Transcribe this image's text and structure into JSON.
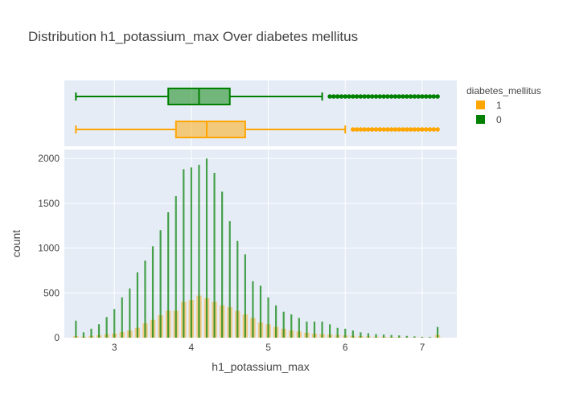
{
  "chart_data": {
    "type": "histogram",
    "title": "Distribution h1_potassium_max Over diabetes mellitus",
    "xlabel": "h1_potassium_max",
    "ylabel": "count",
    "xlim": [
      2.35,
      7.45
    ],
    "ylim": [
      0,
      2100
    ],
    "x_ticks": [
      3,
      4,
      5,
      6,
      7
    ],
    "y_ticks": [
      0,
      500,
      1000,
      1500,
      2000
    ],
    "legend": {
      "title": "diabetes_mellitus",
      "position": "top-right",
      "entries": [
        {
          "label": "1",
          "color": "#FFA500"
        },
        {
          "label": "0",
          "color": "#008000"
        }
      ]
    },
    "series": [
      {
        "name": "1",
        "color": "#FFA500",
        "bins": [
          {
            "x": 2.5,
            "y": 18
          },
          {
            "x": 2.6,
            "y": 12
          },
          {
            "x": 2.7,
            "y": 20
          },
          {
            "x": 2.8,
            "y": 28
          },
          {
            "x": 2.9,
            "y": 38
          },
          {
            "x": 3.0,
            "y": 45
          },
          {
            "x": 3.1,
            "y": 62
          },
          {
            "x": 3.2,
            "y": 80
          },
          {
            "x": 3.3,
            "y": 110
          },
          {
            "x": 3.4,
            "y": 160
          },
          {
            "x": 3.5,
            "y": 200
          },
          {
            "x": 3.6,
            "y": 250
          },
          {
            "x": 3.7,
            "y": 300
          },
          {
            "x": 3.8,
            "y": 300
          },
          {
            "x": 3.9,
            "y": 400
          },
          {
            "x": 4.0,
            "y": 420
          },
          {
            "x": 4.1,
            "y": 470
          },
          {
            "x": 4.2,
            "y": 440
          },
          {
            "x": 4.3,
            "y": 400
          },
          {
            "x": 4.4,
            "y": 360
          },
          {
            "x": 4.5,
            "y": 340
          },
          {
            "x": 4.6,
            "y": 300
          },
          {
            "x": 4.7,
            "y": 260
          },
          {
            "x": 4.8,
            "y": 220
          },
          {
            "x": 4.9,
            "y": 170
          },
          {
            "x": 5.0,
            "y": 150
          },
          {
            "x": 5.1,
            "y": 120
          },
          {
            "x": 5.2,
            "y": 100
          },
          {
            "x": 5.3,
            "y": 80
          },
          {
            "x": 5.4,
            "y": 70
          },
          {
            "x": 5.5,
            "y": 55
          },
          {
            "x": 5.6,
            "y": 45
          },
          {
            "x": 5.7,
            "y": 40
          },
          {
            "x": 5.8,
            "y": 35
          },
          {
            "x": 5.9,
            "y": 30
          },
          {
            "x": 6.0,
            "y": 25
          },
          {
            "x": 6.1,
            "y": 22
          },
          {
            "x": 6.2,
            "y": 18
          },
          {
            "x": 6.3,
            "y": 15
          },
          {
            "x": 6.4,
            "y": 12
          },
          {
            "x": 6.5,
            "y": 12
          },
          {
            "x": 6.6,
            "y": 10
          },
          {
            "x": 6.7,
            "y": 8
          },
          {
            "x": 6.8,
            "y": 6
          },
          {
            "x": 6.9,
            "y": 5
          },
          {
            "x": 7.0,
            "y": 4
          },
          {
            "x": 7.1,
            "y": 3
          },
          {
            "x": 7.2,
            "y": 30
          }
        ]
      },
      {
        "name": "0",
        "color": "#008000",
        "bins": [
          {
            "x": 2.5,
            "y": 190
          },
          {
            "x": 2.6,
            "y": 60
          },
          {
            "x": 2.7,
            "y": 100
          },
          {
            "x": 2.8,
            "y": 150
          },
          {
            "x": 2.9,
            "y": 230
          },
          {
            "x": 3.0,
            "y": 320
          },
          {
            "x": 3.1,
            "y": 450
          },
          {
            "x": 3.2,
            "y": 550
          },
          {
            "x": 3.3,
            "y": 730
          },
          {
            "x": 3.4,
            "y": 860
          },
          {
            "x": 3.5,
            "y": 1020
          },
          {
            "x": 3.6,
            "y": 1200
          },
          {
            "x": 3.7,
            "y": 1400
          },
          {
            "x": 3.8,
            "y": 1580
          },
          {
            "x": 3.9,
            "y": 1880
          },
          {
            "x": 4.0,
            "y": 1900
          },
          {
            "x": 4.1,
            "y": 1930
          },
          {
            "x": 4.2,
            "y": 2000
          },
          {
            "x": 4.3,
            "y": 1840
          },
          {
            "x": 4.4,
            "y": 1630
          },
          {
            "x": 4.5,
            "y": 1300
          },
          {
            "x": 4.6,
            "y": 1080
          },
          {
            "x": 4.7,
            "y": 930
          },
          {
            "x": 4.8,
            "y": 630
          },
          {
            "x": 4.9,
            "y": 580
          },
          {
            "x": 5.0,
            "y": 450
          },
          {
            "x": 5.1,
            "y": 360
          },
          {
            "x": 5.2,
            "y": 290
          },
          {
            "x": 5.3,
            "y": 260
          },
          {
            "x": 5.4,
            "y": 220
          },
          {
            "x": 5.5,
            "y": 180
          },
          {
            "x": 5.6,
            "y": 180
          },
          {
            "x": 5.7,
            "y": 180
          },
          {
            "x": 5.8,
            "y": 150
          },
          {
            "x": 5.9,
            "y": 110
          },
          {
            "x": 6.0,
            "y": 100
          },
          {
            "x": 6.1,
            "y": 80
          },
          {
            "x": 6.2,
            "y": 60
          },
          {
            "x": 6.3,
            "y": 50
          },
          {
            "x": 6.4,
            "y": 40
          },
          {
            "x": 6.5,
            "y": 35
          },
          {
            "x": 6.6,
            "y": 30
          },
          {
            "x": 6.7,
            "y": 25
          },
          {
            "x": 6.8,
            "y": 20
          },
          {
            "x": 6.9,
            "y": 15
          },
          {
            "x": 7.0,
            "y": 10
          },
          {
            "x": 7.1,
            "y": 10
          },
          {
            "x": 7.2,
            "y": 120
          }
        ]
      }
    ],
    "boxplots": [
      {
        "name": "1",
        "color": "#FFA500",
        "min": 2.5,
        "q1": 3.8,
        "median": 4.2,
        "q3": 4.7,
        "upper_fence": 6.0,
        "outliers": [
          6.1,
          6.2,
          6.3,
          6.4,
          6.5,
          6.55,
          6.6,
          6.7,
          6.8,
          6.9,
          7.0,
          7.1,
          7.2
        ]
      },
      {
        "name": "0",
        "color": "#008000",
        "min": 2.5,
        "q1": 3.7,
        "median": 4.1,
        "q3": 4.5,
        "upper_fence": 5.7,
        "outliers": [
          5.8,
          5.85,
          5.9,
          6.0,
          6.1,
          6.2,
          6.3,
          6.4,
          6.5,
          6.55,
          6.6,
          6.7,
          6.8,
          6.9,
          7.0,
          7.1,
          7.2
        ]
      }
    ]
  }
}
